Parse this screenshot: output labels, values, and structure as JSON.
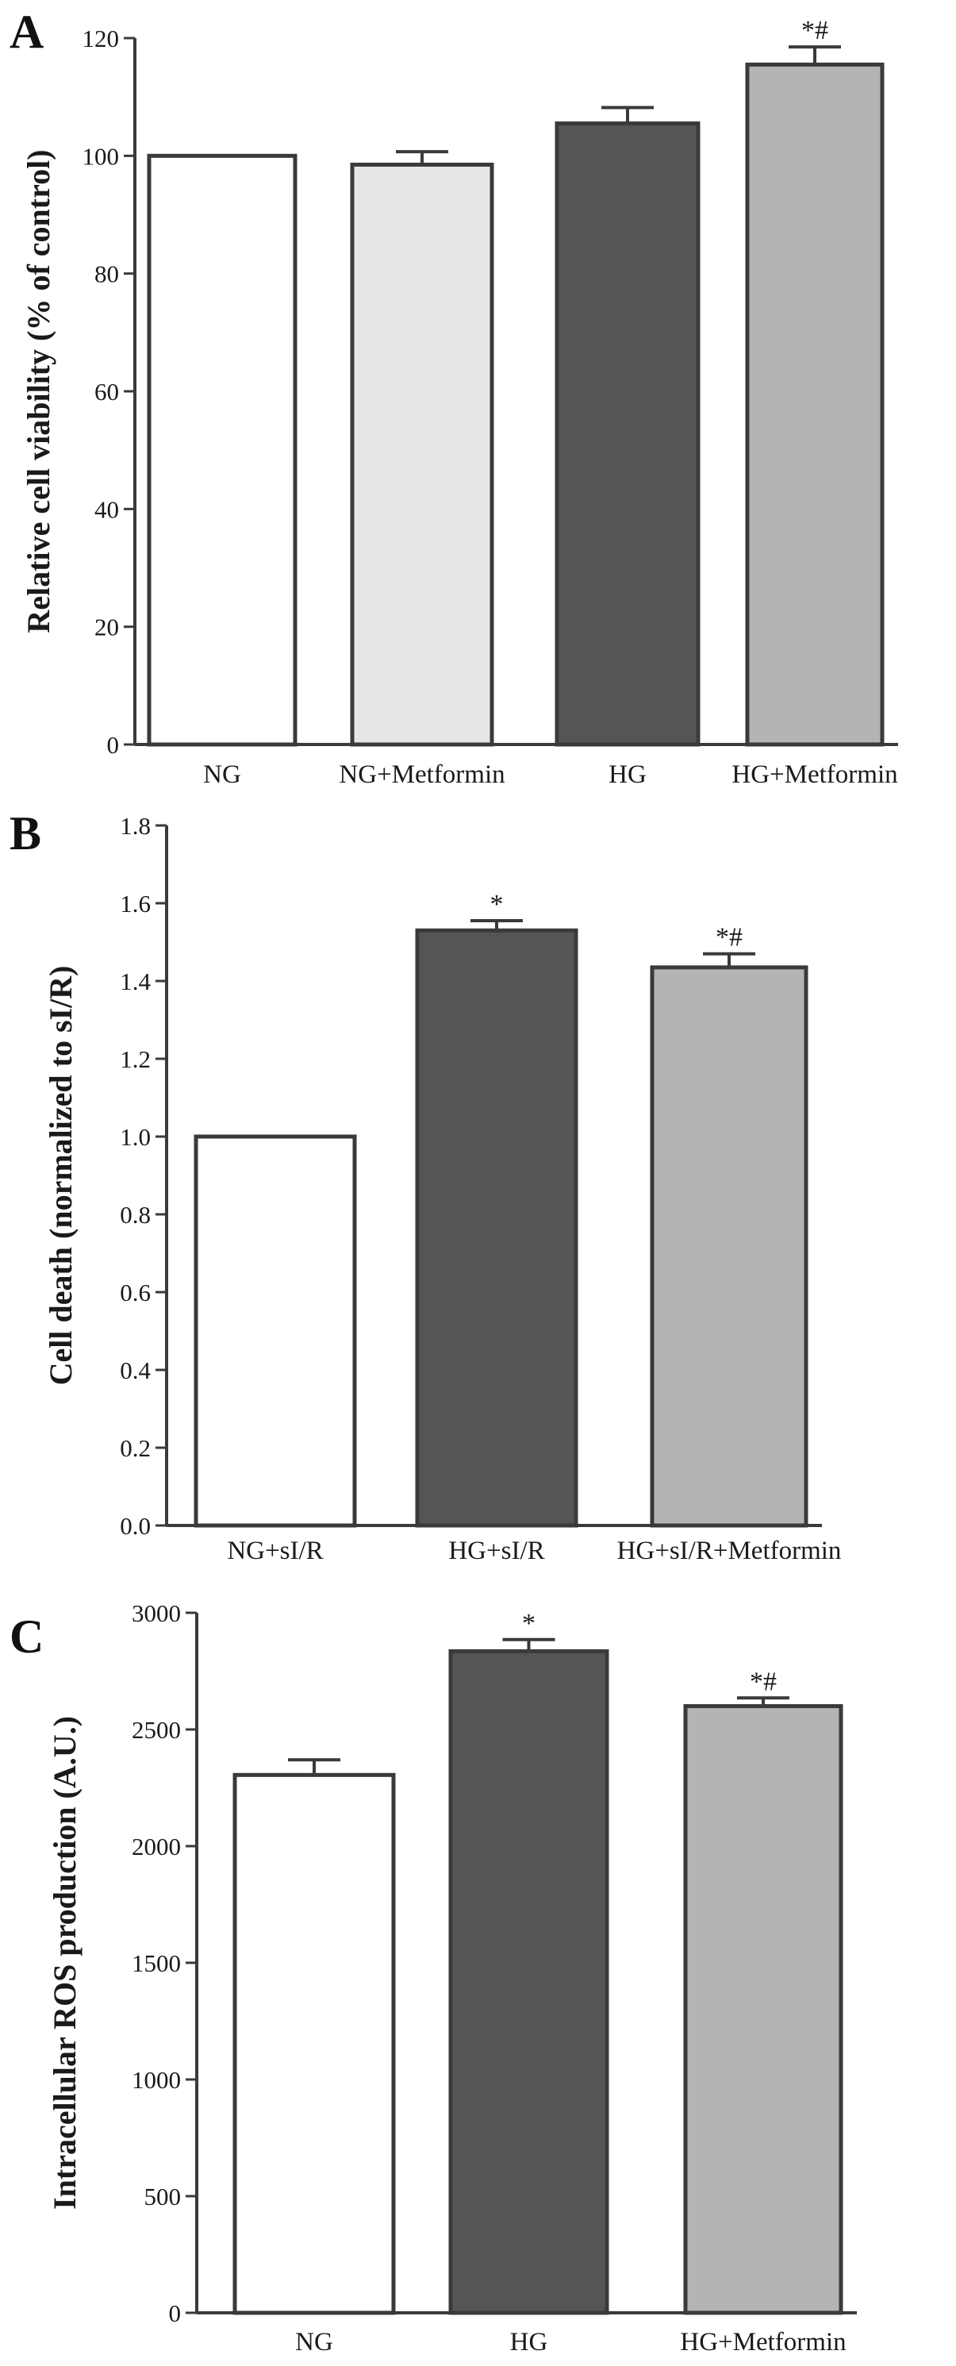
{
  "colors": {
    "axis": "#3a3a3a",
    "bar_stroke": "#3a3a3a",
    "white": "#ffffff",
    "light_gray": "#e6e6e6",
    "dark_gray": "#555555",
    "mid_gray": "#b4b4b4"
  },
  "chart_data": [
    {
      "panel": "A",
      "type": "bar",
      "ylabel": "Relative cell viability (% of control)",
      "xlabel": "",
      "ylim": [
        0,
        120
      ],
      "yticks": [
        0,
        20,
        40,
        60,
        80,
        100,
        120
      ],
      "ytick_labels": [
        "0",
        "20",
        "40",
        "60",
        "80",
        "100",
        "120"
      ],
      "categories": [
        "NG",
        "NG+Metformin",
        "HG",
        "HG+Metformin"
      ],
      "values": [
        100,
        98.5,
        105.5,
        115.5
      ],
      "errors": [
        0,
        2.2,
        2.7,
        3.0
      ],
      "colors": [
        "#ffffff",
        "#e6e6e6",
        "#555555",
        "#b4b4b4"
      ],
      "annotations": [
        "",
        "",
        "",
        "*#"
      ],
      "grid": false,
      "legend": "none"
    },
    {
      "panel": "B",
      "type": "bar",
      "ylabel": "Cell death (normalized to sI/R)",
      "xlabel": "",
      "ylim": [
        0,
        1.8
      ],
      "yticks": [
        0,
        0.2,
        0.4,
        0.6,
        0.8,
        1.0,
        1.2,
        1.4,
        1.6,
        1.8
      ],
      "ytick_labels": [
        "0.0",
        "0.2",
        "0.4",
        "0.6",
        "0.8",
        "1.0",
        "1.2",
        "1.4",
        "1.6",
        "1.8"
      ],
      "categories": [
        "NG+sI/R",
        "HG+sI/R",
        "HG+sI/R+Metformin"
      ],
      "values": [
        1.0,
        1.53,
        1.435
      ],
      "errors": [
        0,
        0.025,
        0.035
      ],
      "colors": [
        "#ffffff",
        "#555555",
        "#b4b4b4"
      ],
      "annotations": [
        "",
        "*",
        "*#"
      ],
      "grid": false,
      "legend": "none"
    },
    {
      "panel": "C",
      "type": "bar",
      "ylabel": "Intracellular ROS production (A.U.)",
      "xlabel": "",
      "ylim": [
        0,
        3000
      ],
      "yticks": [
        0,
        500,
        1000,
        1500,
        2000,
        2500,
        3000
      ],
      "ytick_labels": [
        "0",
        "500",
        "1000",
        "1500",
        "2000",
        "2500",
        "3000"
      ],
      "categories": [
        "NG",
        "HG",
        "HG+Metformin"
      ],
      "values": [
        2305,
        2835,
        2600
      ],
      "errors": [
        65,
        50,
        35
      ],
      "colors": [
        "#ffffff",
        "#555555",
        "#b4b4b4"
      ],
      "annotations": [
        "",
        "*",
        "*#"
      ],
      "grid": false,
      "legend": "none"
    }
  ]
}
